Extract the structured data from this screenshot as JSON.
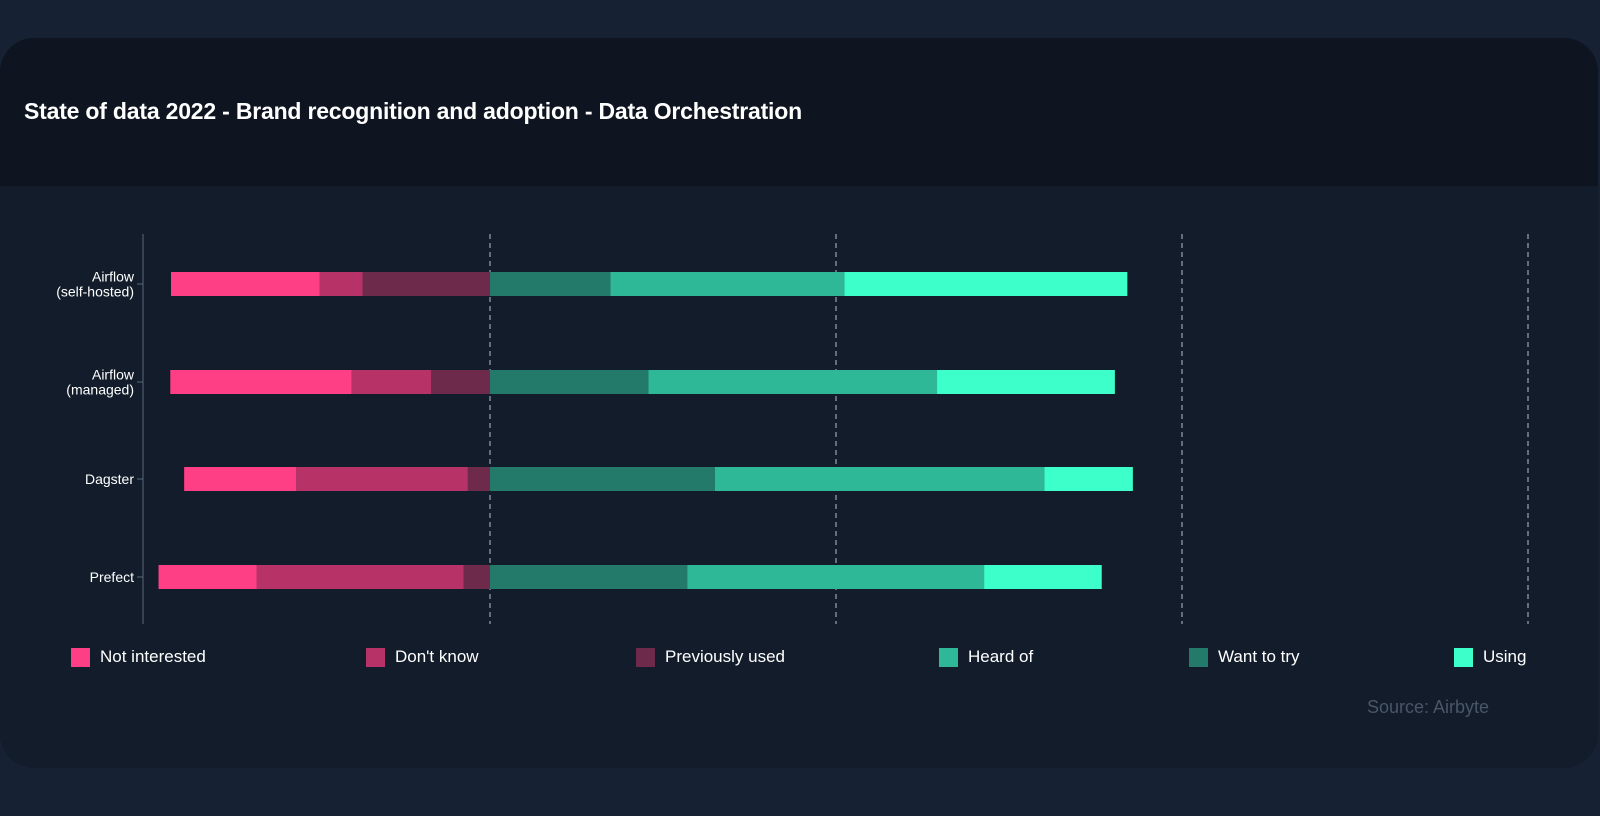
{
  "chart_data": {
    "type": "bar",
    "orientation": "horizontal",
    "stacked": true,
    "diverging": true,
    "title": "State of data 2022 - Brand recognition and adoption - Data Orchestration",
    "source": "Source: Airbyte",
    "categories": [
      [
        "Airflow",
        "(self-hosted)"
      ],
      [
        "Airflow",
        "(managed)"
      ],
      [
        "Dagster"
      ],
      [
        "Prefect"
      ]
    ],
    "xlim": [
      -50,
      150
    ],
    "gridlines_at": [
      0,
      50,
      100,
      150
    ],
    "grid": true,
    "tick_labels_shown": false,
    "legend_position": "bottom",
    "series": [
      {
        "name": "Not interested",
        "color": "#ff3f85",
        "values": [
          21.5,
          26.2,
          16.2,
          14.2
        ]
      },
      {
        "name": "Don't know",
        "color": "#b73266",
        "values": [
          6.2,
          11.5,
          24.8,
          29.9
        ]
      },
      {
        "name": "Previously used",
        "color": "#6e2a4b",
        "values": [
          18.4,
          8.5,
          3.2,
          3.8
        ]
      },
      {
        "name": "Want to try",
        "color": "#237a6a",
        "values": [
          17.4,
          22.9,
          32.5,
          28.5
        ]
      },
      {
        "name": "Heard of",
        "color": "#2fb897",
        "values": [
          33.8,
          41.7,
          47.6,
          42.9
        ]
      },
      {
        "name": "Using",
        "color": "#3dffc9",
        "values": [
          40.9,
          25.7,
          12.8,
          17.0
        ]
      }
    ],
    "negative_series": [
      "Not interested",
      "Don't know",
      "Previously used"
    ],
    "positive_series": [
      "Want to try",
      "Heard of",
      "Using"
    ],
    "legend_order": [
      "Not interested",
      "Don't know",
      "Previously used",
      "Heard of",
      "Want to try",
      "Using"
    ]
  }
}
